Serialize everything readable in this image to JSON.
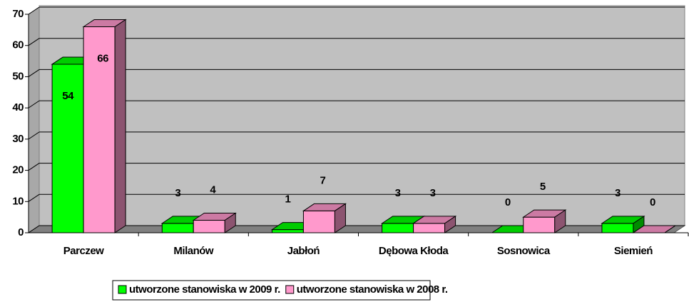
{
  "chart_data": {
    "type": "bar3d",
    "categories": [
      "Parczew",
      "Milanów",
      "Jabłoń",
      "Dębowa Kłoda",
      "Sosnowica",
      "Siemień"
    ],
    "series": [
      {
        "name": "utworzone stanowiska w 2009 r.",
        "color": "#00ff00",
        "values": [
          54,
          3,
          1,
          3,
          0,
          3
        ]
      },
      {
        "name": "utworzone stanowiska w 2008 r.",
        "color": "#ff99cc",
        "values": [
          66,
          4,
          7,
          3,
          5,
          0
        ]
      }
    ],
    "ylim": [
      0,
      70
    ],
    "yticks": [
      0,
      10,
      20,
      30,
      40,
      50,
      60,
      70
    ],
    "grid": true,
    "legend": "bottom"
  }
}
